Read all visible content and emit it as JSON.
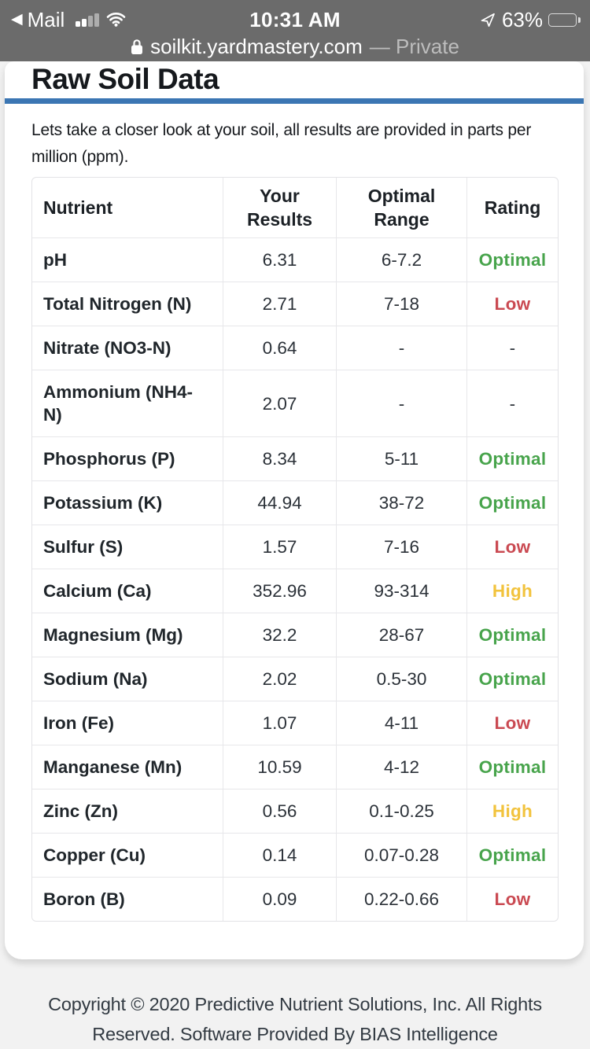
{
  "status_bar": {
    "back_label": "Mail",
    "time": "10:31 AM",
    "battery_percent": "63%",
    "battery_fill": 63,
    "signal_bars_filled": 2,
    "signal_bars_total": 4
  },
  "url_bar": {
    "domain": "soilkit.yardmastery.com",
    "privacy_label": "— Private"
  },
  "icons": {
    "back": "back-chevron-icon",
    "signal": "cell-signal-icon",
    "wifi": "wifi-icon",
    "location": "location-arrow-icon",
    "battery": "battery-icon",
    "lock": "lock-icon"
  },
  "page": {
    "title": "Raw Soil Data",
    "intro": "Lets take a closer look at your soil, all results are provided in parts per million (ppm).",
    "footer": "Copyright © 2020 Predictive Nutrient Solutions, Inc. All Rights Reserved. Software Provided By BIAS Intelligence"
  },
  "table": {
    "headers": [
      "Nutrient",
      "Your Results",
      "Optimal Range",
      "Rating"
    ],
    "rows": [
      {
        "nutrient": "pH",
        "result": "6.31",
        "range": "6-7.2",
        "rating": "Optimal"
      },
      {
        "nutrient": "Total Nitrogen (N)",
        "result": "2.71",
        "range": "7-18",
        "rating": "Low"
      },
      {
        "nutrient": "Nitrate (NO3-N)",
        "result": "0.64",
        "range": "-",
        "rating": "-"
      },
      {
        "nutrient": "Ammonium (NH4-N)",
        "result": "2.07",
        "range": "-",
        "rating": "-"
      },
      {
        "nutrient": "Phosphorus (P)",
        "result": "8.34",
        "range": "5-11",
        "rating": "Optimal"
      },
      {
        "nutrient": "Potassium (K)",
        "result": "44.94",
        "range": "38-72",
        "rating": "Optimal"
      },
      {
        "nutrient": "Sulfur (S)",
        "result": "1.57",
        "range": "7-16",
        "rating": "Low"
      },
      {
        "nutrient": "Calcium (Ca)",
        "result": "352.96",
        "range": "93-314",
        "rating": "High"
      },
      {
        "nutrient": "Magnesium (Mg)",
        "result": "32.2",
        "range": "28-67",
        "rating": "Optimal"
      },
      {
        "nutrient": "Sodium (Na)",
        "result": "2.02",
        "range": "0.5-30",
        "rating": "Optimal"
      },
      {
        "nutrient": "Iron (Fe)",
        "result": "1.07",
        "range": "4-11",
        "rating": "Low"
      },
      {
        "nutrient": "Manganese (Mn)",
        "result": "10.59",
        "range": "4-12",
        "rating": "Optimal"
      },
      {
        "nutrient": "Zinc (Zn)",
        "result": "0.56",
        "range": "0.1-0.25",
        "rating": "High"
      },
      {
        "nutrient": "Copper (Cu)",
        "result": "0.14",
        "range": "0.07-0.28",
        "rating": "Optimal"
      },
      {
        "nutrient": "Boron (B)",
        "result": "0.09",
        "range": "0.22-0.66",
        "rating": "Low"
      }
    ]
  },
  "colors": {
    "accent_blue": "#3b76b3",
    "optimal_green": "#48a44c",
    "low_red": "#ca4a52",
    "high_yellow": "#f2c33d",
    "status_bar_bg": "#6b6b6b"
  }
}
